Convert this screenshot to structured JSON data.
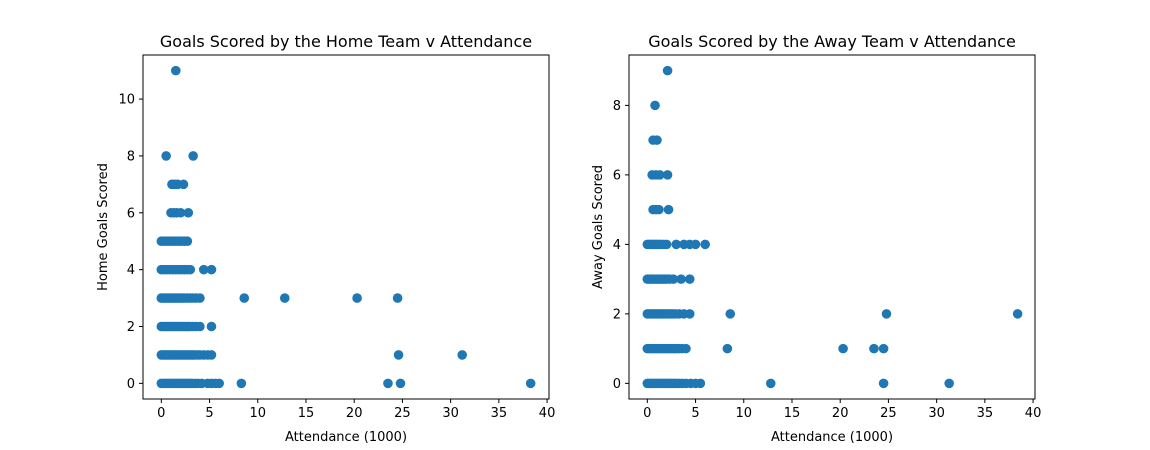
{
  "chart_data": [
    {
      "type": "scatter",
      "title": "Goals Scored by the Home Team v Attendance",
      "xlabel": "Attendance (1000)",
      "ylabel": "Home Goals Scored",
      "xlim": [
        -1.9,
        40.2
      ],
      "ylim": [
        -0.55,
        11.55
      ],
      "xticks": [
        0,
        5,
        10,
        15,
        20,
        25,
        30,
        35,
        40
      ],
      "yticks": [
        0,
        2,
        4,
        6,
        8,
        10
      ],
      "grid": false,
      "legend": "none",
      "color": "#1f77b4",
      "series": [
        {
          "x": [
            0.0,
            0.2,
            0.4,
            0.6,
            0.8,
            1.0,
            1.2,
            1.4,
            1.6,
            1.8,
            2.0,
            2.2,
            2.4,
            2.6,
            2.8,
            3.0,
            3.2,
            3.5,
            3.8,
            4.2,
            4.8,
            5.2,
            5.6,
            6.0,
            8.3,
            23.5,
            24.8,
            38.3,
            0.0,
            0.2,
            0.4,
            0.6,
            0.8,
            1.0,
            1.2,
            1.4,
            1.6,
            1.8,
            2.0,
            2.2,
            2.4,
            2.6,
            2.8,
            3.0,
            3.2,
            3.4,
            3.7,
            4.0,
            4.4,
            4.8,
            5.2,
            24.6,
            31.2,
            0.0,
            0.2,
            0.4,
            0.6,
            0.8,
            1.0,
            1.2,
            1.4,
            1.6,
            1.8,
            2.0,
            2.2,
            2.4,
            2.6,
            2.8,
            3.0,
            3.3,
            3.6,
            4.0,
            5.2,
            0.0,
            0.2,
            0.4,
            0.6,
            0.8,
            1.0,
            1.2,
            1.4,
            1.6,
            1.8,
            2.0,
            2.2,
            2.4,
            2.7,
            3.0,
            3.3,
            3.6,
            4.0,
            8.6,
            12.8,
            20.3,
            24.5,
            0.0,
            0.3,
            0.6,
            0.9,
            1.2,
            1.5,
            1.8,
            2.1,
            2.4,
            2.7,
            3.0,
            4.4,
            5.2,
            0.0,
            0.3,
            0.6,
            0.9,
            1.2,
            1.5,
            1.8,
            2.1,
            2.4,
            2.7,
            1.0,
            1.3,
            1.6,
            2.0,
            2.8,
            1.1,
            1.4,
            1.7,
            2.3,
            0.5,
            3.3,
            1.5
          ],
          "y": [
            0,
            0,
            0,
            0,
            0,
            0,
            0,
            0,
            0,
            0,
            0,
            0,
            0,
            0,
            0,
            0,
            0,
            0,
            0,
            0,
            0,
            0,
            0,
            0,
            0,
            0,
            0,
            0,
            1,
            1,
            1,
            1,
            1,
            1,
            1,
            1,
            1,
            1,
            1,
            1,
            1,
            1,
            1,
            1,
            1,
            1,
            1,
            1,
            1,
            1,
            1,
            1,
            1,
            2,
            2,
            2,
            2,
            2,
            2,
            2,
            2,
            2,
            2,
            2,
            2,
            2,
            2,
            2,
            2,
            2,
            2,
            2,
            2,
            3,
            3,
            3,
            3,
            3,
            3,
            3,
            3,
            3,
            3,
            3,
            3,
            3,
            3,
            3,
            3,
            3,
            3,
            3,
            3,
            3,
            3,
            4,
            4,
            4,
            4,
            4,
            4,
            4,
            4,
            4,
            4,
            4,
            4,
            4,
            5,
            5,
            5,
            5,
            5,
            5,
            5,
            5,
            5,
            5,
            6,
            6,
            6,
            6,
            6,
            7,
            7,
            7,
            7,
            8,
            8,
            11
          ]
        }
      ]
    },
    {
      "type": "scatter",
      "title": "Goals Scored by the Away Team v Attendance",
      "xlabel": "Attendance (1000)",
      "ylabel": "Away Goals Scored",
      "xlim": [
        -1.9,
        40.2
      ],
      "ylim": [
        -0.45,
        9.45
      ],
      "xticks": [
        0,
        5,
        10,
        15,
        20,
        25,
        30,
        35,
        40
      ],
      "yticks": [
        0,
        2,
        4,
        6,
        8
      ],
      "grid": false,
      "legend": "none",
      "color": "#1f77b4",
      "series": [
        {
          "x": [
            0.0,
            0.2,
            0.4,
            0.6,
            0.8,
            1.0,
            1.2,
            1.4,
            1.6,
            1.8,
            2.0,
            2.2,
            2.4,
            2.6,
            2.8,
            3.0,
            3.3,
            3.6,
            4.0,
            4.5,
            5.0,
            5.5,
            12.8,
            24.5,
            31.3,
            0.0,
            0.2,
            0.4,
            0.6,
            0.8,
            1.0,
            1.2,
            1.4,
            1.6,
            1.8,
            2.0,
            2.2,
            2.4,
            2.6,
            2.8,
            3.0,
            3.3,
            3.6,
            4.0,
            8.3,
            20.3,
            23.5,
            24.5,
            0.0,
            0.2,
            0.4,
            0.6,
            0.8,
            1.0,
            1.2,
            1.4,
            1.6,
            1.8,
            2.0,
            2.2,
            2.4,
            2.6,
            2.9,
            3.3,
            3.8,
            4.4,
            8.6,
            24.8,
            38.4,
            0.0,
            0.2,
            0.4,
            0.6,
            0.8,
            1.0,
            1.2,
            1.4,
            1.6,
            1.8,
            2.0,
            2.3,
            2.7,
            3.5,
            4.4,
            0.0,
            0.2,
            0.4,
            0.6,
            0.8,
            1.0,
            1.2,
            1.4,
            1.7,
            2.0,
            3.0,
            3.8,
            4.4,
            5.0,
            6.0,
            0.6,
            0.9,
            1.2,
            2.2,
            0.5,
            0.9,
            1.3,
            2.1,
            0.6,
            1.0,
            0.8,
            2.1
          ],
          "y": [
            0,
            0,
            0,
            0,
            0,
            0,
            0,
            0,
            0,
            0,
            0,
            0,
            0,
            0,
            0,
            0,
            0,
            0,
            0,
            0,
            0,
            0,
            0,
            0,
            0,
            1,
            1,
            1,
            1,
            1,
            1,
            1,
            1,
            1,
            1,
            1,
            1,
            1,
            1,
            1,
            1,
            1,
            1,
            1,
            1,
            1,
            1,
            1,
            2,
            2,
            2,
            2,
            2,
            2,
            2,
            2,
            2,
            2,
            2,
            2,
            2,
            2,
            2,
            2,
            2,
            2,
            2,
            2,
            2,
            3,
            3,
            3,
            3,
            3,
            3,
            3,
            3,
            3,
            3,
            3,
            3,
            3,
            3,
            3,
            4,
            4,
            4,
            4,
            4,
            4,
            4,
            4,
            4,
            4,
            4,
            4,
            4,
            4,
            4,
            5,
            5,
            5,
            5,
            6,
            6,
            6,
            6,
            7,
            7,
            8,
            9
          ]
        }
      ]
    }
  ]
}
